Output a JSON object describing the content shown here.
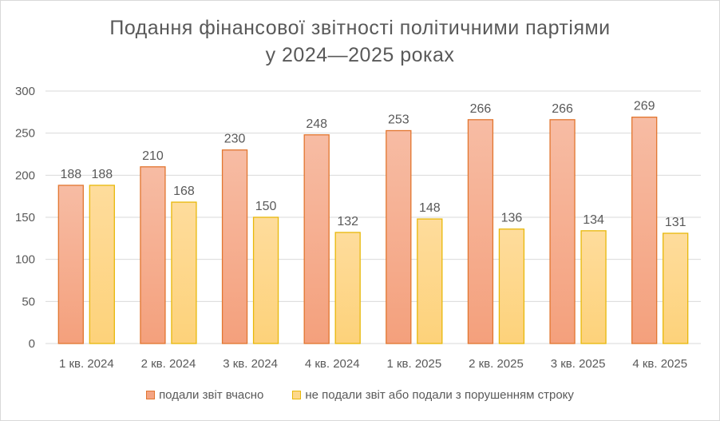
{
  "colors": {
    "series_on_time_fill": "#f4a483",
    "series_on_time_stroke": "#e2762f",
    "series_late_fill": "#fdd88a",
    "series_late_stroke": "#e8b80a",
    "grid": "#d9d9d9",
    "text": "#595959"
  },
  "chart_data": {
    "type": "bar",
    "title": "Подання фінансової звітності політичними партіями",
    "subtitle": "у 2024—2025 роках",
    "xlabel": "",
    "ylabel": "",
    "ylim": [
      0,
      300
    ],
    "yticks": [
      "0",
      "50",
      "100",
      "150",
      "200",
      "250",
      "300"
    ],
    "grid": true,
    "legend_position": "bottom",
    "categories": [
      "1 кв. 2024",
      "2 кв. 2024",
      "3 кв. 2024",
      "4 кв. 2024",
      "1 кв. 2025",
      "2 кв. 2025",
      "3 кв. 2025",
      "4 кв. 2025"
    ],
    "series": [
      {
        "name": "подали звіт вчасно",
        "values": [
          188,
          210,
          230,
          248,
          253,
          266,
          266,
          269
        ]
      },
      {
        "name": "не подали звіт або подали з порушенням строку",
        "values": [
          188,
          168,
          150,
          132,
          148,
          136,
          134,
          131
        ]
      }
    ]
  }
}
